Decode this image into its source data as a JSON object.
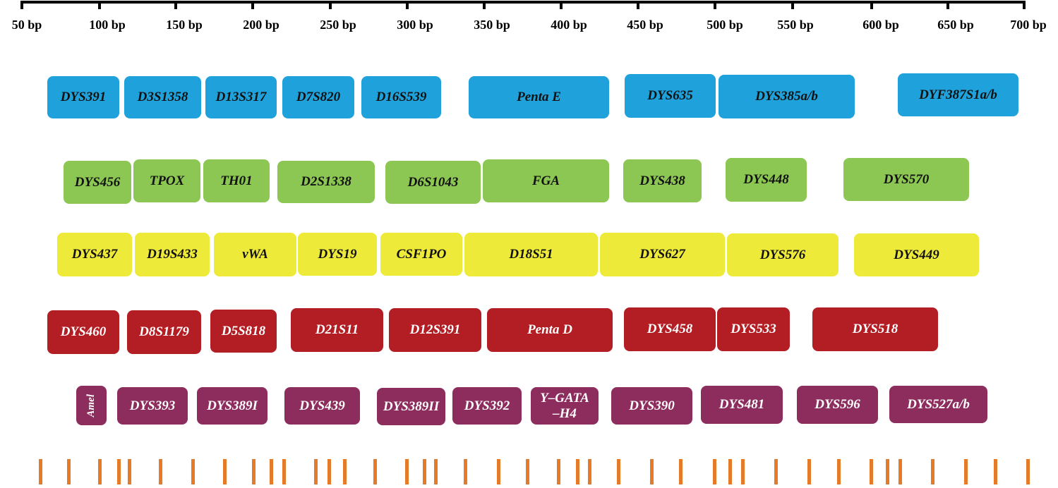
{
  "axis": {
    "ticks": [
      "50 bp",
      "100 bp",
      "150 bp",
      "200 bp",
      "250 bp",
      "300 bp",
      "350 bp",
      "400 bp",
      "450 bp",
      "500 bp",
      "550 bp",
      "600 bp",
      "650 bp",
      "700 bp"
    ]
  },
  "rows": [
    {
      "color": "blue",
      "markers": [
        "DYS391",
        "D3S1358",
        "D13S317",
        "D7S820",
        "D16S539",
        "Penta E",
        "DYS635",
        "DYS385a/b",
        "DYF387S1a/b"
      ]
    },
    {
      "color": "green",
      "markers": [
        "DYS456",
        "TPOX",
        "TH01",
        "D2S1338",
        "D6S1043",
        "FGA",
        "DYS438",
        "DYS448",
        "DYS570"
      ]
    },
    {
      "color": "yellow",
      "markers": [
        "DYS437",
        "D19S433",
        "vWA",
        "DYS19",
        "CSF1PO",
        "D18S51",
        "DYS627",
        "DYS576",
        "DYS449"
      ]
    },
    {
      "color": "red",
      "markers": [
        "DYS460",
        "D8S1179",
        "D5S818",
        "D21S11",
        "D12S391",
        "Penta D",
        "DYS458",
        "DYS533",
        "DYS518"
      ]
    },
    {
      "color": "purple",
      "markers": [
        "Amel",
        "DYS393",
        "DYS389I",
        "DYS439",
        "DYS389II",
        "DYS392",
        "Y–GATA\n–H4",
        "DYS390",
        "DYS481",
        "DYS596",
        "DYS527a/b"
      ]
    }
  ],
  "colors": {
    "blue": "#1fa2dc",
    "green": "#8cc653",
    "yellow": "#eeea39",
    "red": "#b31e24",
    "purple": "#8c2d5d",
    "marker": "#e57a28"
  }
}
